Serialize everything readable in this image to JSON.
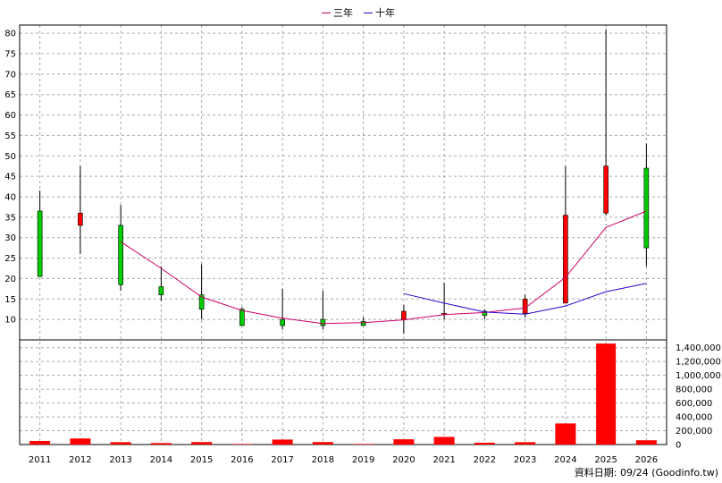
{
  "legend": {
    "items": [
      {
        "label": "三年",
        "color": "#cc0066"
      },
      {
        "label": "十年",
        "color": "#3300cc"
      }
    ]
  },
  "footer": "資料日期: 09/24  (Goodinfo.tw)",
  "chart_data": [
    {
      "type": "candlestick",
      "x": [
        "2011",
        "2012",
        "2013",
        "2014",
        "2015",
        "2016",
        "2017",
        "2018",
        "2019",
        "2020",
        "2021",
        "2022",
        "2023",
        "2024",
        "2025",
        "2026"
      ],
      "open": [
        36.5,
        33,
        33,
        18,
        16,
        12.5,
        10,
        10,
        9.5,
        10,
        11.5,
        12,
        11.5,
        14,
        36,
        47
      ],
      "close": [
        20.5,
        36,
        18.5,
        16,
        12.5,
        8.5,
        8.5,
        8.5,
        8.5,
        12,
        11.5,
        11,
        15,
        35.5,
        47.5,
        27.5
      ],
      "high": [
        41.5,
        47.5,
        38,
        23,
        23.5,
        13,
        17.5,
        17,
        10.5,
        13.5,
        19,
        12.5,
        16,
        47.5,
        81,
        53
      ],
      "low": [
        20.5,
        26,
        17,
        14.5,
        10,
        8.5,
        7.5,
        7.5,
        8.5,
        6.5,
        10,
        10,
        10.5,
        14,
        35.5,
        23
      ],
      "up_color": "#ff0000",
      "down_color": "#00cc00",
      "series": [
        {
          "name": "三年",
          "color": "#cc0066",
          "values": [
            null,
            null,
            29,
            22.5,
            15.5,
            12.2,
            10.3,
            9,
            9.2,
            9.9,
            11.2,
            11.7,
            12.8,
            20.3,
            32.5,
            36.5
          ]
        },
        {
          "name": "十年",
          "color": "#3300cc",
          "values": [
            null,
            null,
            null,
            null,
            null,
            null,
            null,
            null,
            null,
            16.3,
            14,
            11.8,
            11.3,
            13.3,
            16.8,
            18.8
          ]
        }
      ],
      "ylim": [
        5,
        82
      ],
      "yticks": [
        10,
        15,
        20,
        25,
        30,
        35,
        40,
        45,
        50,
        55,
        60,
        65,
        70,
        75,
        80
      ]
    },
    {
      "type": "bar",
      "x": [
        "2011",
        "2012",
        "2013",
        "2014",
        "2015",
        "2016",
        "2017",
        "2018",
        "2019",
        "2020",
        "2021",
        "2022",
        "2023",
        "2024",
        "2025",
        "2026"
      ],
      "values": [
        52000,
        88000,
        34000,
        22000,
        36000,
        8000,
        72000,
        36000,
        8000,
        76000,
        110000,
        26000,
        34000,
        305000,
        1460000,
        62000
      ],
      "color": "#ff0000",
      "ylim": [
        0,
        1500000
      ],
      "yticks": [
        "0",
        "200,000",
        "400,000",
        "600,000",
        "800,000",
        "1,000,000",
        "1,200,000",
        "1,400,000"
      ]
    }
  ]
}
